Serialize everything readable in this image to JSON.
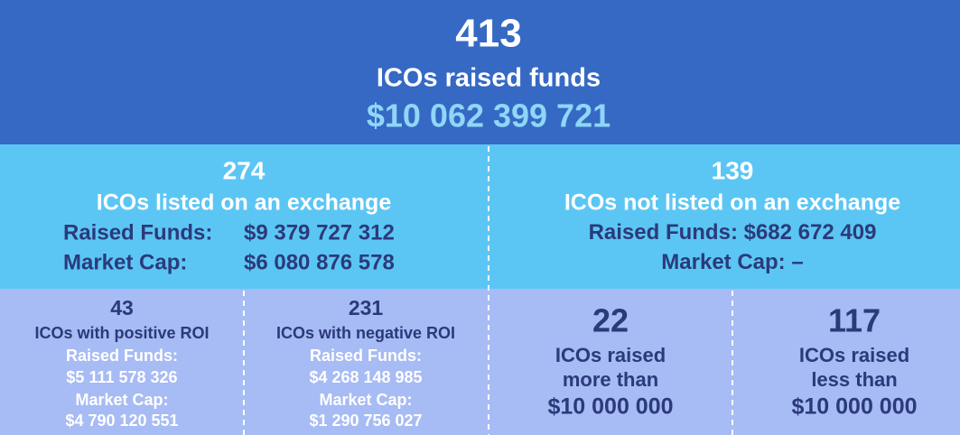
{
  "header": {
    "count": "413",
    "label": "ICOs raised funds",
    "amount": "$10 062 399 721"
  },
  "listed": {
    "count": "274",
    "label": "ICOs listed on an exchange",
    "funds_label": "Raised Funds:",
    "funds": "$9 379 727 312",
    "cap_label": "Market Cap:",
    "cap": "$6 080 876 578"
  },
  "not_listed": {
    "count": "139",
    "label": "ICOs not listed on an exchange",
    "funds_label": "Raised Funds:",
    "funds": "$682 672 409",
    "cap_label": "Market Cap:",
    "cap": "–"
  },
  "cells": [
    {
      "count": "43",
      "label": "ICOs with positive ROI",
      "funds_label": "Raised Funds:",
      "funds": "$5 111 578 326",
      "cap_label": "Market Cap:",
      "cap": "$4 790 120 551"
    },
    {
      "count": "231",
      "label": "ICOs with negative ROI",
      "funds_label": "Raised Funds:",
      "funds": "$4 268 148 985",
      "cap_label": "Market Cap:",
      "cap": "$1 290 756 027"
    },
    {
      "count": "22",
      "lines": [
        "ICOs raised",
        "more than",
        "$10 000 000"
      ]
    },
    {
      "count": "117",
      "lines": [
        "ICOs raised",
        "less than",
        "$10 000 000"
      ]
    }
  ]
}
